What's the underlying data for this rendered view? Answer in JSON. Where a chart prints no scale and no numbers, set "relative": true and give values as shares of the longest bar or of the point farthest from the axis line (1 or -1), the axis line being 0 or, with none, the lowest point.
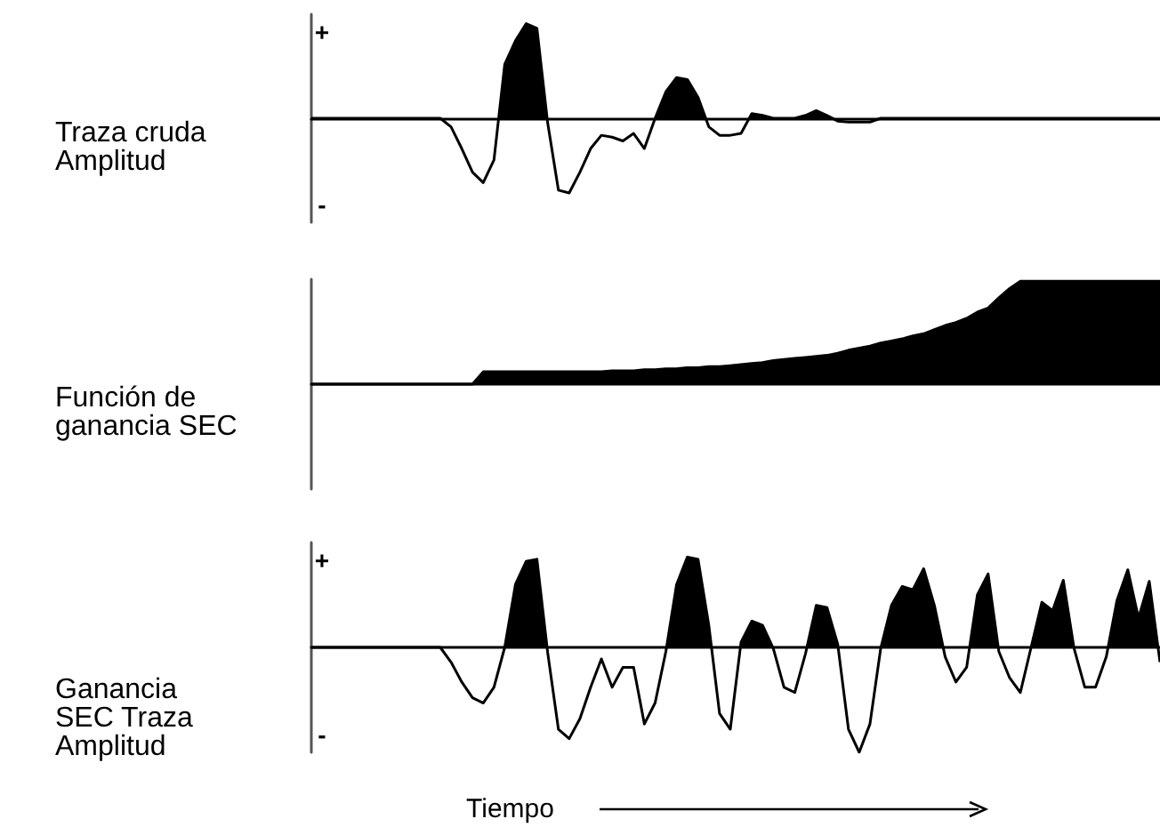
{
  "chart_data": [
    {
      "type": "area",
      "relative": true,
      "ylabel": "Traza cruda Amplitud",
      "annotations": [
        "+",
        "-"
      ],
      "tick_labels": false,
      "categories": [
        null,
        null,
        null,
        null,
        null,
        null,
        null,
        null,
        null,
        null,
        null,
        null,
        null,
        null,
        null,
        null,
        null,
        null,
        null,
        null,
        null,
        null,
        null,
        null,
        null,
        null,
        null,
        null,
        null,
        null,
        null,
        null,
        null,
        null,
        null,
        null,
        null,
        null,
        null,
        null,
        null,
        null,
        null,
        null,
        null,
        null,
        null,
        null,
        null,
        null,
        null,
        null,
        null,
        null,
        null,
        null,
        null,
        null,
        null,
        null,
        null,
        null,
        null,
        null,
        null,
        null,
        null,
        null,
        null,
        null,
        null,
        null,
        null,
        null,
        null,
        null,
        null,
        null,
        null,
        null
      ],
      "series": [
        {
          "color": "#000000",
          "values": [
            0,
            0,
            0,
            0,
            0,
            0,
            0,
            0,
            0,
            0,
            0,
            0,
            0,
            -0.09,
            -0.32,
            -0.57,
            -0.68,
            -0.44,
            0.57,
            0.82,
            1,
            0.95,
            -0.05,
            -0.76,
            -0.79,
            -0.57,
            -0.32,
            -0.18,
            -0.2,
            -0.24,
            -0.16,
            -0.32,
            0,
            0.28,
            0.43,
            0.41,
            0.22,
            -0.09,
            -0.18,
            -0.18,
            -0.16,
            0.05,
            0.03,
            0,
            0,
            0,
            0.03,
            0.08,
            0.03,
            -0.03,
            -0.04,
            -0.04,
            -0.04,
            0,
            0,
            0,
            0,
            0,
            0,
            0,
            0,
            0,
            0,
            0,
            0,
            0,
            0,
            0,
            0,
            0,
            0,
            0,
            0,
            0,
            0,
            0,
            0,
            0,
            0,
            0
          ]
        }
      ]
    },
    {
      "type": "area",
      "relative": true,
      "ylabel": "Función de ganancia SEC",
      "tick_labels": false,
      "categories": [
        null,
        null,
        null,
        null,
        null,
        null,
        null,
        null,
        null,
        null,
        null,
        null,
        null,
        null,
        null,
        null,
        null,
        null,
        null,
        null,
        null,
        null,
        null,
        null,
        null,
        null,
        null,
        null,
        null,
        null,
        null,
        null,
        null,
        null,
        null,
        null,
        null,
        null,
        null,
        null,
        null,
        null,
        null,
        null,
        null,
        null,
        null,
        null,
        null,
        null,
        null,
        null,
        null,
        null,
        null,
        null,
        null,
        null,
        null,
        null,
        null,
        null,
        null,
        null,
        null,
        null,
        null,
        null,
        null,
        null,
        null,
        null,
        null,
        null,
        null,
        null,
        null,
        null,
        null,
        null
      ],
      "series": [
        {
          "color": "#000000",
          "values": [
            0,
            0,
            0,
            0,
            0,
            0,
            0,
            0,
            0,
            0,
            0,
            0,
            0,
            0,
            0,
            0,
            0.12,
            0.12,
            0.12,
            0.12,
            0.12,
            0.12,
            0.12,
            0.12,
            0.12,
            0.12,
            0.12,
            0.12,
            0.13,
            0.13,
            0.13,
            0.14,
            0.14,
            0.15,
            0.15,
            0.16,
            0.16,
            0.17,
            0.17,
            0.18,
            0.19,
            0.2,
            0.21,
            0.23,
            0.24,
            0.25,
            0.26,
            0.27,
            0.28,
            0.3,
            0.33,
            0.35,
            0.37,
            0.4,
            0.42,
            0.44,
            0.47,
            0.49,
            0.53,
            0.57,
            0.6,
            0.64,
            0.7,
            0.74,
            0.84,
            0.93,
            1,
            1,
            1,
            1,
            1,
            1,
            1,
            1,
            1,
            1,
            1,
            1,
            1,
            1
          ]
        }
      ]
    },
    {
      "type": "area",
      "relative": true,
      "ylabel": "Ganancia SEC Traza Amplitud",
      "xlabel": "Tiempo",
      "annotations": [
        "+",
        "-"
      ],
      "tick_labels": false,
      "categories": [
        null,
        null,
        null,
        null,
        null,
        null,
        null,
        null,
        null,
        null,
        null,
        null,
        null,
        null,
        null,
        null,
        null,
        null,
        null,
        null,
        null,
        null,
        null,
        null,
        null,
        null,
        null,
        null,
        null,
        null,
        null,
        null,
        null,
        null,
        null,
        null,
        null,
        null,
        null,
        null,
        null,
        null,
        null,
        null,
        null,
        null,
        null,
        null,
        null,
        null,
        null,
        null,
        null,
        null,
        null,
        null,
        null,
        null,
        null,
        null,
        null,
        null,
        null,
        null,
        null,
        null,
        null,
        null,
        null,
        null,
        null,
        null,
        null,
        null,
        null,
        null,
        null,
        null,
        null,
        null
      ],
      "series": [
        {
          "color": "#000000",
          "values": [
            0,
            0,
            0,
            0,
            0,
            0,
            0,
            0,
            0,
            0,
            0,
            0,
            0,
            -0.14,
            -0.33,
            -0.48,
            -0.53,
            -0.38,
            0,
            0.6,
            0.82,
            0.84,
            -0.05,
            -0.78,
            -0.87,
            -0.68,
            -0.38,
            -0.11,
            -0.38,
            -0.19,
            -0.19,
            -0.73,
            -0.53,
            -0.04,
            0.6,
            0.86,
            0.84,
            0.21,
            -0.63,
            -0.78,
            0.05,
            0.25,
            0.21,
            -0.01,
            -0.38,
            -0.43,
            -0.06,
            0.4,
            0.38,
            0.03,
            -0.78,
            -1,
            -0.73,
            -0.01,
            0.4,
            0.58,
            0.55,
            0.75,
            0.4,
            -0.09,
            -0.33,
            -0.19,
            0.5,
            0.7,
            -0.04,
            -0.29,
            -0.43,
            0,
            0.43,
            0.35,
            0.64,
            -0.01,
            -0.38,
            -0.38,
            -0.09,
            0.45,
            0.74,
            0.28,
            0.63,
            -0.14
          ]
        }
      ]
    }
  ]
}
